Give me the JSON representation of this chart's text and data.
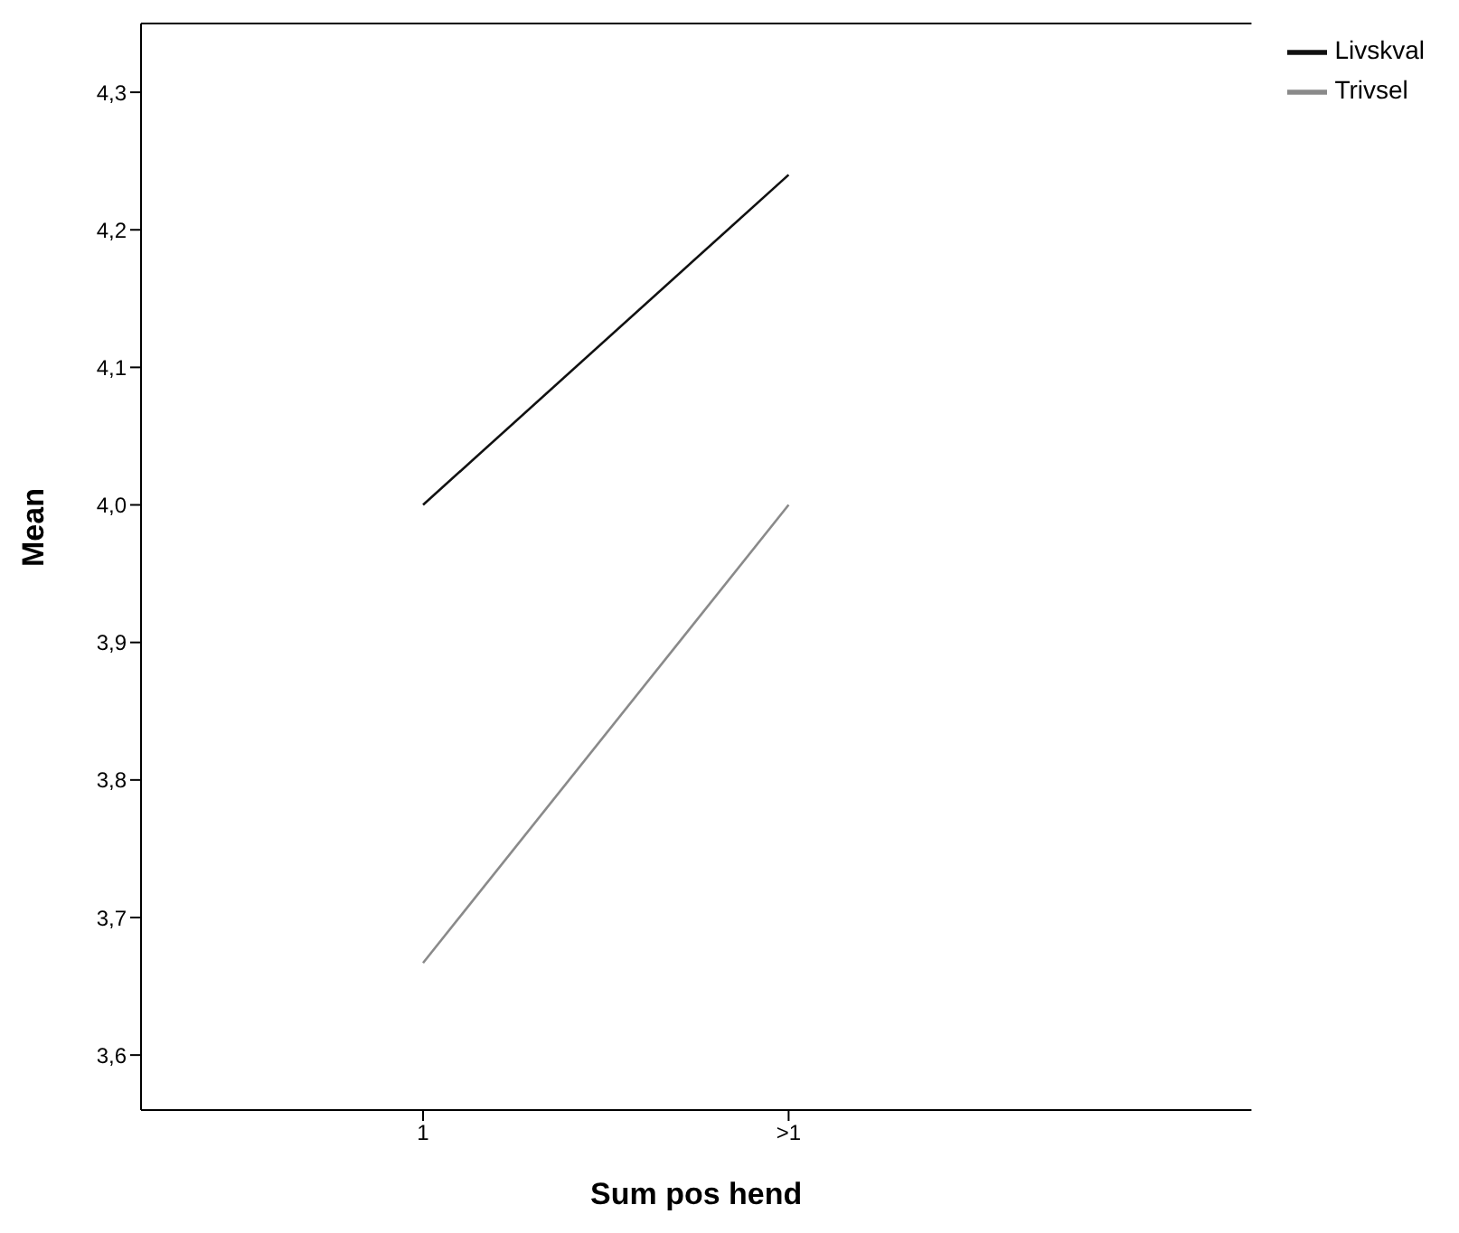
{
  "chart_data": {
    "type": "line",
    "xlabel": "Sum pos hend",
    "ylabel": "Mean",
    "categories": [
      "1",
      ">1"
    ],
    "series": [
      {
        "name": "Livskval",
        "color": "#111111",
        "values": [
          4.0,
          4.24
        ]
      },
      {
        "name": "Trivsel",
        "color": "#8a8a8a",
        "values": [
          3.667,
          4.0
        ]
      }
    ],
    "ylim": [
      3.56,
      4.35
    ],
    "yticks": [
      {
        "value": 3.6,
        "label": "3,6"
      },
      {
        "value": 3.7,
        "label": "3,7"
      },
      {
        "value": 3.8,
        "label": "3,8"
      },
      {
        "value": 3.9,
        "label": "3,9"
      },
      {
        "value": 4.0,
        "label": "4,0"
      },
      {
        "value": 4.1,
        "label": "4,1"
      },
      {
        "value": 4.2,
        "label": "4,2"
      },
      {
        "value": 4.3,
        "label": "4,3"
      }
    ],
    "legend": "top right",
    "marker": "none",
    "line_style": "solid",
    "grid": false
  }
}
